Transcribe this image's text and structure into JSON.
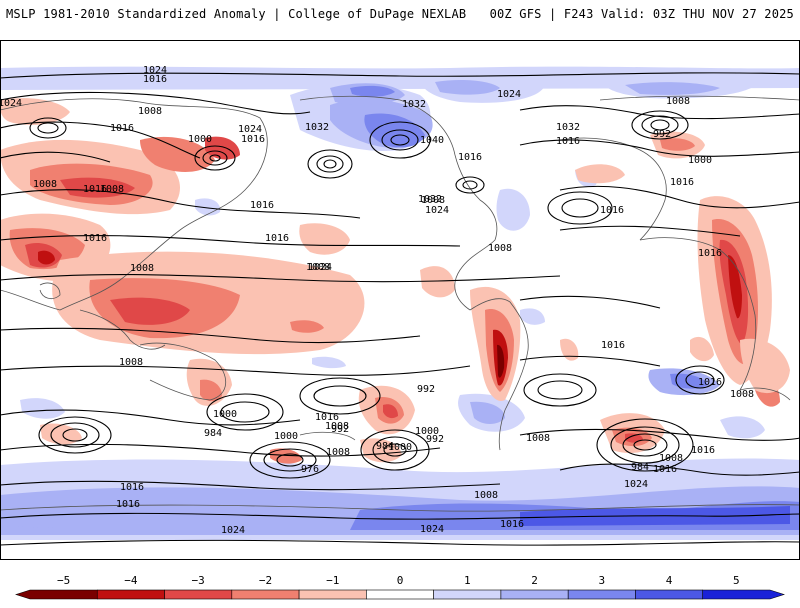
{
  "header": {
    "title": "MSLP 1981-2010 Standardized Anomaly | College of DuPage NEXLAB",
    "run_info": "00Z GFS | F243 Valid: 03Z THU NOV 27 2025"
  },
  "colors": {
    "neg5": "#7a0000",
    "neg4": "#c01010",
    "neg3": "#e04848",
    "neg2": "#f08070",
    "neg1": "#fbc2b2",
    "pos1": "#d2d6fb",
    "pos2": "#a9b1f5",
    "pos3": "#7a86ee",
    "pos4": "#4c58e6",
    "pos5": "#1a22d8",
    "land": "#ffffff",
    "outline": "#555555",
    "isobar": "#000000"
  },
  "colorbar": {
    "ticks": [
      "−5",
      "−4",
      "−3",
      "−2",
      "−1",
      "0",
      "1",
      "2",
      "3",
      "4",
      "5"
    ]
  },
  "isobar_labels": [
    {
      "t": "1024"
    },
    {
      "t": "1016"
    },
    {
      "t": "1008"
    },
    {
      "t": "1016"
    },
    {
      "t": "1000"
    },
    {
      "t": "1024"
    },
    {
      "t": "1016"
    },
    {
      "t": "1032"
    },
    {
      "t": "1032"
    },
    {
      "t": "1040"
    },
    {
      "t": "1024"
    },
    {
      "t": "1032"
    },
    {
      "t": "1008"
    },
    {
      "t": "992"
    },
    {
      "t": "1016"
    },
    {
      "t": "1016"
    },
    {
      "t": "1000"
    },
    {
      "t": "1008"
    },
    {
      "t": "1016"
    },
    {
      "t": "1008"
    },
    {
      "t": "1024"
    },
    {
      "t": "1016"
    },
    {
      "t": "1016"
    },
    {
      "t": "1032"
    },
    {
      "t": "1024"
    },
    {
      "t": "1008"
    },
    {
      "t": "1016"
    },
    {
      "t": "1008"
    },
    {
      "t": "1016"
    },
    {
      "t": "1016"
    },
    {
      "t": "1008"
    },
    {
      "t": "1016"
    },
    {
      "t": "1008"
    },
    {
      "t": "1024"
    },
    {
      "t": "1016"
    },
    {
      "t": "1016"
    },
    {
      "t": "1008"
    },
    {
      "t": "1008"
    },
    {
      "t": "1000"
    },
    {
      "t": "1016"
    },
    {
      "t": "1000"
    },
    {
      "t": "992"
    },
    {
      "t": "984"
    },
    {
      "t": "976"
    },
    {
      "t": "1008"
    },
    {
      "t": "1000"
    },
    {
      "t": "992"
    },
    {
      "t": "984"
    },
    {
      "t": "992"
    },
    {
      "t": "1008"
    },
    {
      "t": "984"
    },
    {
      "t": "1000"
    },
    {
      "t": "1008"
    },
    {
      "t": "1016"
    },
    {
      "t": "1016"
    },
    {
      "t": "1008"
    },
    {
      "t": "1024"
    },
    {
      "t": "1016"
    },
    {
      "t": "1016"
    },
    {
      "t": "1008"
    },
    {
      "t": "1024"
    },
    {
      "t": "1024"
    },
    {
      "t": "1016"
    }
  ]
}
